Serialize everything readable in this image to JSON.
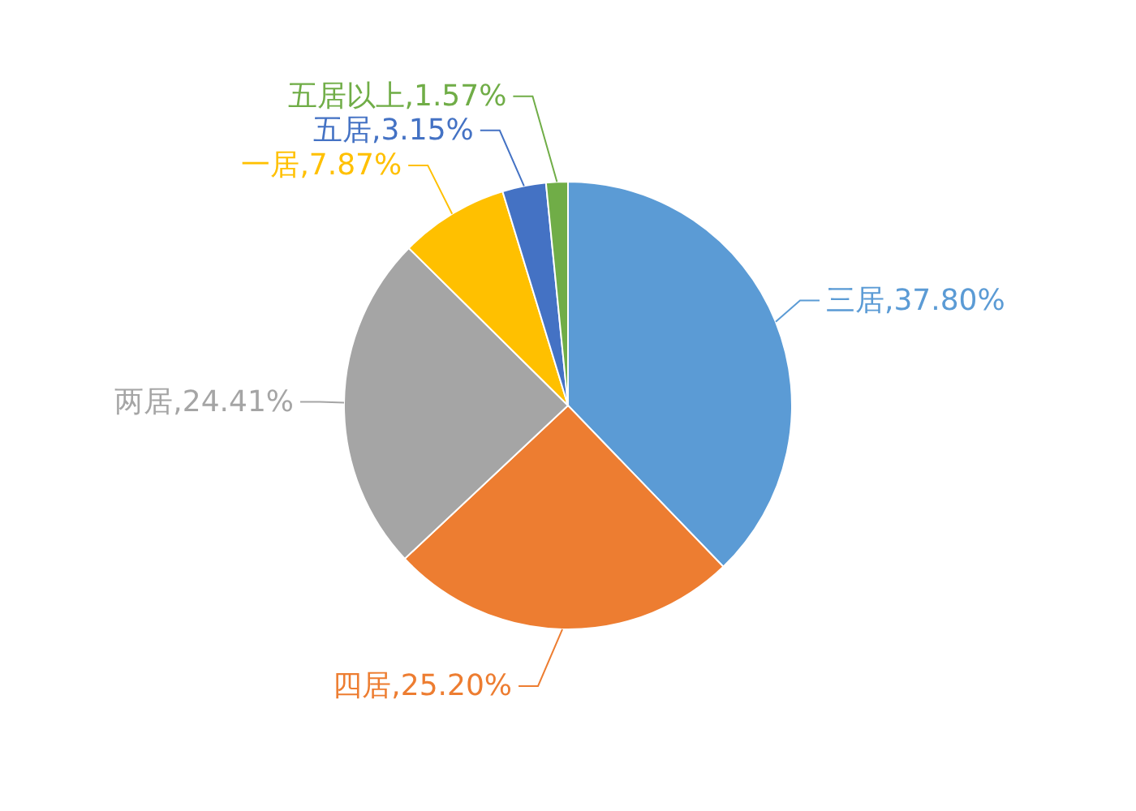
{
  "chart_data": {
    "type": "pie",
    "categories": [
      "三居",
      "四居",
      "两居",
      "一居",
      "五居",
      "五居以上"
    ],
    "values": [
      37.8,
      25.2,
      24.41,
      7.87,
      3.15,
      1.57
    ],
    "colors": [
      "#5b9bd5",
      "#ed7d31",
      "#a5a5a5",
      "#ffc000",
      "#4472c4",
      "#70ad47"
    ],
    "data_labels": true,
    "value_labels": [
      "37.80%",
      "25.20%",
      "24.41%",
      "7.87%",
      "3.15%",
      "1.57%"
    ]
  }
}
